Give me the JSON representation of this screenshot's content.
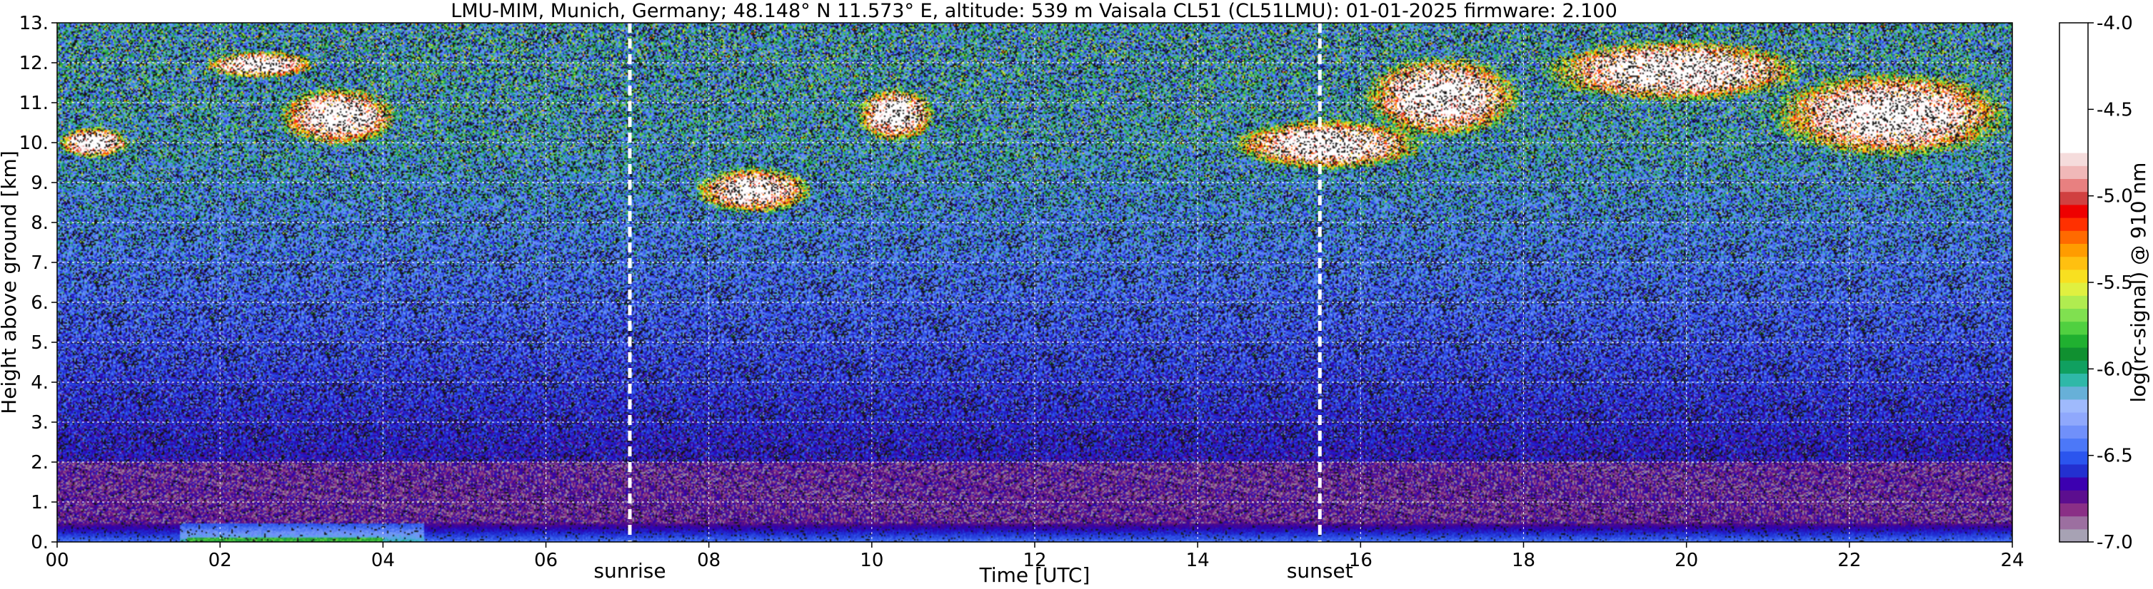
{
  "chart_data": {
    "type": "heatmap",
    "title": "LMU-MIM, Munich, Germany; 48.148° N 11.573° E, altitude: 539 m    Vaisala CL51 (CL51LMU): 01-01-2025    firmware: 2.100",
    "xlabel": "Time [UTC]",
    "ylabel": "Height above ground [km]",
    "xlim": [
      0,
      24
    ],
    "ylim": [
      0,
      13
    ],
    "x_ticks": [
      "00",
      "02",
      "04",
      "06",
      "08",
      "10",
      "12",
      "14",
      "16",
      "18",
      "20",
      "22",
      "24"
    ],
    "y_ticks": [
      "0.",
      "1.",
      "2.",
      "3.",
      "4.",
      "5.",
      "6.",
      "7.",
      "8.",
      "9.",
      "10.",
      "11.",
      "12.",
      "13."
    ],
    "grid": true,
    "colorbar": {
      "label": "log(rc-signal) @ 910 nm",
      "range": [
        -7.0,
        -4.0
      ],
      "ticks": [
        "-4.0",
        "-4.5",
        "-5.0",
        "-5.5",
        "-6.0",
        "-6.5",
        "-7.0"
      ],
      "colors": [
        "#a7a2b4",
        "#9c6fa0",
        "#8a2f86",
        "#5c0e8f",
        "#3c00b0",
        "#2330d0",
        "#2b55ee",
        "#4c78f8",
        "#7090fa",
        "#8fa8fc",
        "#9fbafc",
        "#67b0d8",
        "#2fb8a8",
        "#10a060",
        "#109030",
        "#20b030",
        "#50d040",
        "#80e050",
        "#b0ec50",
        "#e0f040",
        "#f8e020",
        "#ffc010",
        "#ff9c00",
        "#ff6a00",
        "#ff3000",
        "#ee0000",
        "#d04040",
        "#e88080",
        "#f0b8b8",
        "#f5dcdc",
        "#ffffff",
        "#ffffff",
        "#ffffff",
        "#ffffff",
        "#ffffff",
        "#ffffff",
        "#ffffff",
        "#ffffff",
        "#ffffff",
        "#ffffff"
      ]
    },
    "vertical_markers": [
      {
        "label": "sunrise",
        "x": 7.03
      },
      {
        "label": "sunset",
        "x": 15.5
      }
    ],
    "features": [
      {
        "kind": "surface_aerosol_layer",
        "x_range": [
          0,
          24
        ],
        "height_km": [
          0,
          0.45
        ]
      },
      {
        "kind": "boundary_layer_enhancement",
        "x_range": [
          1.5,
          4.5
        ],
        "height_km": [
          0,
          0.6
        ]
      },
      {
        "kind": "cirrus",
        "x_range": [
          1.8,
          3.2
        ],
        "height_km": [
          11.6,
          12.3
        ]
      },
      {
        "kind": "cirrus",
        "x_range": [
          2.7,
          4.2
        ],
        "height_km": [
          9.9,
          11.4
        ]
      },
      {
        "kind": "cirrus",
        "x_range": [
          0,
          0.9
        ],
        "height_km": [
          9.6,
          10.4
        ]
      },
      {
        "kind": "cirrus",
        "x_range": [
          7.8,
          9.3
        ],
        "height_km": [
          8.2,
          9.4
        ]
      },
      {
        "kind": "cirrus",
        "x_range": [
          9.8,
          10.8
        ],
        "height_km": [
          10.0,
          11.4
        ]
      },
      {
        "kind": "cirrus",
        "x_range": [
          14.4,
          16.8
        ],
        "height_km": [
          9.3,
          10.6
        ]
      },
      {
        "kind": "cirrus",
        "x_range": [
          16.0,
          18.0
        ],
        "height_km": [
          10.1,
          12.2
        ]
      },
      {
        "kind": "cirrus",
        "x_range": [
          18.2,
          21.5
        ],
        "height_km": [
          11.0,
          12.6
        ]
      },
      {
        "kind": "cirrus",
        "x_range": [
          21.0,
          24.0
        ],
        "height_km": [
          9.6,
          11.8
        ]
      }
    ]
  },
  "annotations": {
    "sunrise": "sunrise",
    "sunset": "sunset"
  }
}
